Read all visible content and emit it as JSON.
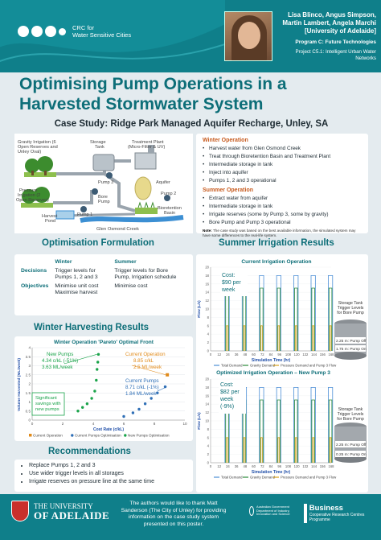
{
  "header": {
    "logo_line1": "CRC for",
    "logo_line2": "Water Sensitive Cities",
    "authors": "Lisa Blinco, Angus Simpson, Martin Lambert, Angela Marchi",
    "affiliation": "[University of Adelaide]",
    "program": "Program C: Future Technologies",
    "project": "Project C5.1: Intelligent Urban Water Networks"
  },
  "title": "Optimising Pump Operations in a Harvested Stormwater System",
  "subtitle": "Case Study: Ridge Park Managed Aquifer Recharge, Unley, SA",
  "diagram": {
    "gravity_irrigation": "Gravity Irrigation (6 Open Reserves and Unley Oval)",
    "storage_tank": "Storage Tank",
    "treatment_plant": "Treatment Plant (Micro-Filter & UV)",
    "pump3": "Pump 3",
    "pump2": "Pump 2",
    "aquifer": "Aquifer",
    "pressure_irrigation": "Pressure Irrigation (2 Open Reserves)",
    "bore_pump": "Bore Pump",
    "harvest_pond": "Harvest Pond",
    "pump1": "Pump 1",
    "bioretention": "Bioretention Basin",
    "creek": "Glen Osmond Creek"
  },
  "info": {
    "winter_title": "Winter Operation",
    "winter_items": [
      "Harvest water from Glen Osmond Creek",
      "Treat through Bioretention Basin and Treatment Plant",
      "Intermediate storage in tank",
      "Inject into aquifer",
      "Pumps 1, 2 and 3 operational"
    ],
    "summer_title": "Summer Operation",
    "summer_items": [
      "Extract water from aquifer",
      "Intermediate storage in tank",
      "Irrigate reserves (some by Pump 3, some by gravity)",
      "Bore Pump and Pump 3 operational"
    ],
    "note_label": "Note:",
    "note": "The case study was based on the best available information, the simulated system may have some differences to the real-life system."
  },
  "optimisation": {
    "title": "Optimisation Formulation",
    "col_winter": "Winter",
    "col_summer": "Summer",
    "row_decisions": "Decisions",
    "row_objectives": "Objectives",
    "decisions_winter": "Trigger levels for Pumps 1, 2 and 3",
    "decisions_summer": "Trigger levels for Bore Pump, Irrigation schedule",
    "objectives_winter": "Minimise unit cost Maximise harvest",
    "objectives_summer": "Minimise cost"
  },
  "winter_results": {
    "section_title": "Winter Harvesting Results",
    "chart_title": "Winter Operation 'Pareto' Optimal Front",
    "label_new": "New Pumps",
    "label_new_cost": "4.34 c/kL (-51%)",
    "label_new_vol": "3.63 ML/week",
    "label_cur": "Current Operation",
    "label_cur_cost": "8.85 c/kL",
    "label_cur_vol": "2.5 ML/week",
    "label_curp": "Current Pumps",
    "label_curp_cost": "8.71 c/kL (-1%)",
    "label_curp_vol": "1.84 ML/week",
    "callout": "Significant savings with new pumps"
  },
  "recommendations": {
    "title": "Recommendations",
    "items": [
      "Replace Pumps 1, 2 and 3",
      "Use wider trigger levels in all storages",
      "Irrigate reserves on pressure line at the same time"
    ]
  },
  "summer": {
    "section_title": "Summer Irrigation Results",
    "chart1_title": "Current Irrigation Operation",
    "chart1_cost": "Cost: $90 per week",
    "chart1_side": "Storage Tank Trigger Levels for Bore Pump",
    "chart1_off": "2.25 m: Pump Off",
    "chart1_on": "1.75 m: Pump On",
    "chart2_title": "Optimized Irrigation Operation – New Pump 3",
    "chart2_cost": "Cost: $82 per week (-9%)",
    "chart2_side": "Storage Tank Trigger Levels for Bore Pump",
    "chart2_off": "2.25 m: Pump Off",
    "chart2_on": "0.25 m: Pump On"
  },
  "footer": {
    "uoa_line1": "THE UNIVERSITY",
    "uoa_line2": "OF ADELAIDE",
    "thanks": "The authors would like to thank Matt Sanderson (The City of Unley) for providing information on the case study system presented on this poster.",
    "gov": "Australian Government Department of Industry, Innovation and Science",
    "bcrc1": "Business",
    "bcrc2": "Cooperative Research Centres Programme"
  },
  "chart_data": [
    {
      "type": "scatter",
      "title": "Winter Operation 'Pareto' Optimal Front",
      "xlabel": "Cost Rate (c/kL)",
      "ylabel": "Volume Harvested (ML/week)",
      "xlim": [
        0,
        10
      ],
      "ylim": [
        0,
        4
      ],
      "xticks": [
        "0",
        "2",
        "4",
        "6",
        "8",
        "10"
      ],
      "yticks": [
        "0",
        "0.5",
        "1",
        "1.5",
        "2",
        "2.5",
        "3",
        "3.5",
        "4"
      ],
      "series": [
        {
          "name": "Current Operation",
          "color": "#2e9a2e",
          "points": [
            [
              8.85,
              2.5
            ]
          ]
        },
        {
          "name": "Current Pumps Optimisation",
          "color": "#2f6fb6",
          "points": [
            [
              6.0,
              0.2
            ],
            [
              6.6,
              0.4
            ],
            [
              7.0,
              0.6
            ],
            [
              7.4,
              0.9
            ],
            [
              7.8,
              1.2
            ],
            [
              8.2,
              1.5
            ],
            [
              8.71,
              1.84
            ]
          ]
        },
        {
          "name": "New Pumps Optimisation",
          "color": "#1aa34a",
          "points": [
            [
              3.0,
              0.5
            ],
            [
              3.3,
              0.7
            ],
            [
              3.6,
              0.9
            ],
            [
              3.9,
              1.2
            ],
            [
              4.1,
              1.6
            ],
            [
              4.2,
              2.2
            ],
            [
              4.25,
              2.8
            ],
            [
              4.3,
              3.2
            ],
            [
              4.34,
              3.63
            ]
          ]
        }
      ]
    },
    {
      "type": "line",
      "title": "Current Irrigation Operation",
      "xlabel": "Simulation Time (hr)",
      "ylabel": "Flow (L/s)",
      "xlim": [
        0,
        168
      ],
      "ylim": [
        0,
        20
      ],
      "xticks": [
        "0",
        "12",
        "24",
        "36",
        "48",
        "60",
        "72",
        "84",
        "96",
        "108",
        "120",
        "132",
        "144",
        "156",
        "168"
      ],
      "yticks": [
        "0",
        "2",
        "4",
        "6",
        "8",
        "10",
        "12",
        "14",
        "16",
        "18",
        "20"
      ],
      "series": [
        {
          "name": "Total Demand",
          "color": "#4c8fd6"
        },
        {
          "name": "Gravity Demand",
          "color": "#2a8a3a"
        },
        {
          "name": "Pressure Demand and Pump 3 Flow",
          "color": "#d9a21b"
        }
      ]
    },
    {
      "type": "line",
      "title": "Optimized Irrigation Operation – New Pump 3",
      "xlabel": "Simulation Time (hr)",
      "ylabel": "Flow (L/s)",
      "xlim": [
        0,
        168
      ],
      "ylim": [
        0,
        20
      ],
      "xticks": [
        "0",
        "12",
        "24",
        "36",
        "48",
        "60",
        "72",
        "84",
        "96",
        "108",
        "120",
        "132",
        "144",
        "156",
        "168"
      ],
      "yticks": [
        "0",
        "2",
        "4",
        "6",
        "8",
        "10",
        "12",
        "14",
        "16",
        "18",
        "20"
      ],
      "series": [
        {
          "name": "Total Demand",
          "color": "#4c8fd6"
        },
        {
          "name": "Gravity Demand",
          "color": "#2a8a3a"
        },
        {
          "name": "Pressure Demand and Pump 3 Flow",
          "color": "#d9a21b"
        }
      ]
    }
  ]
}
